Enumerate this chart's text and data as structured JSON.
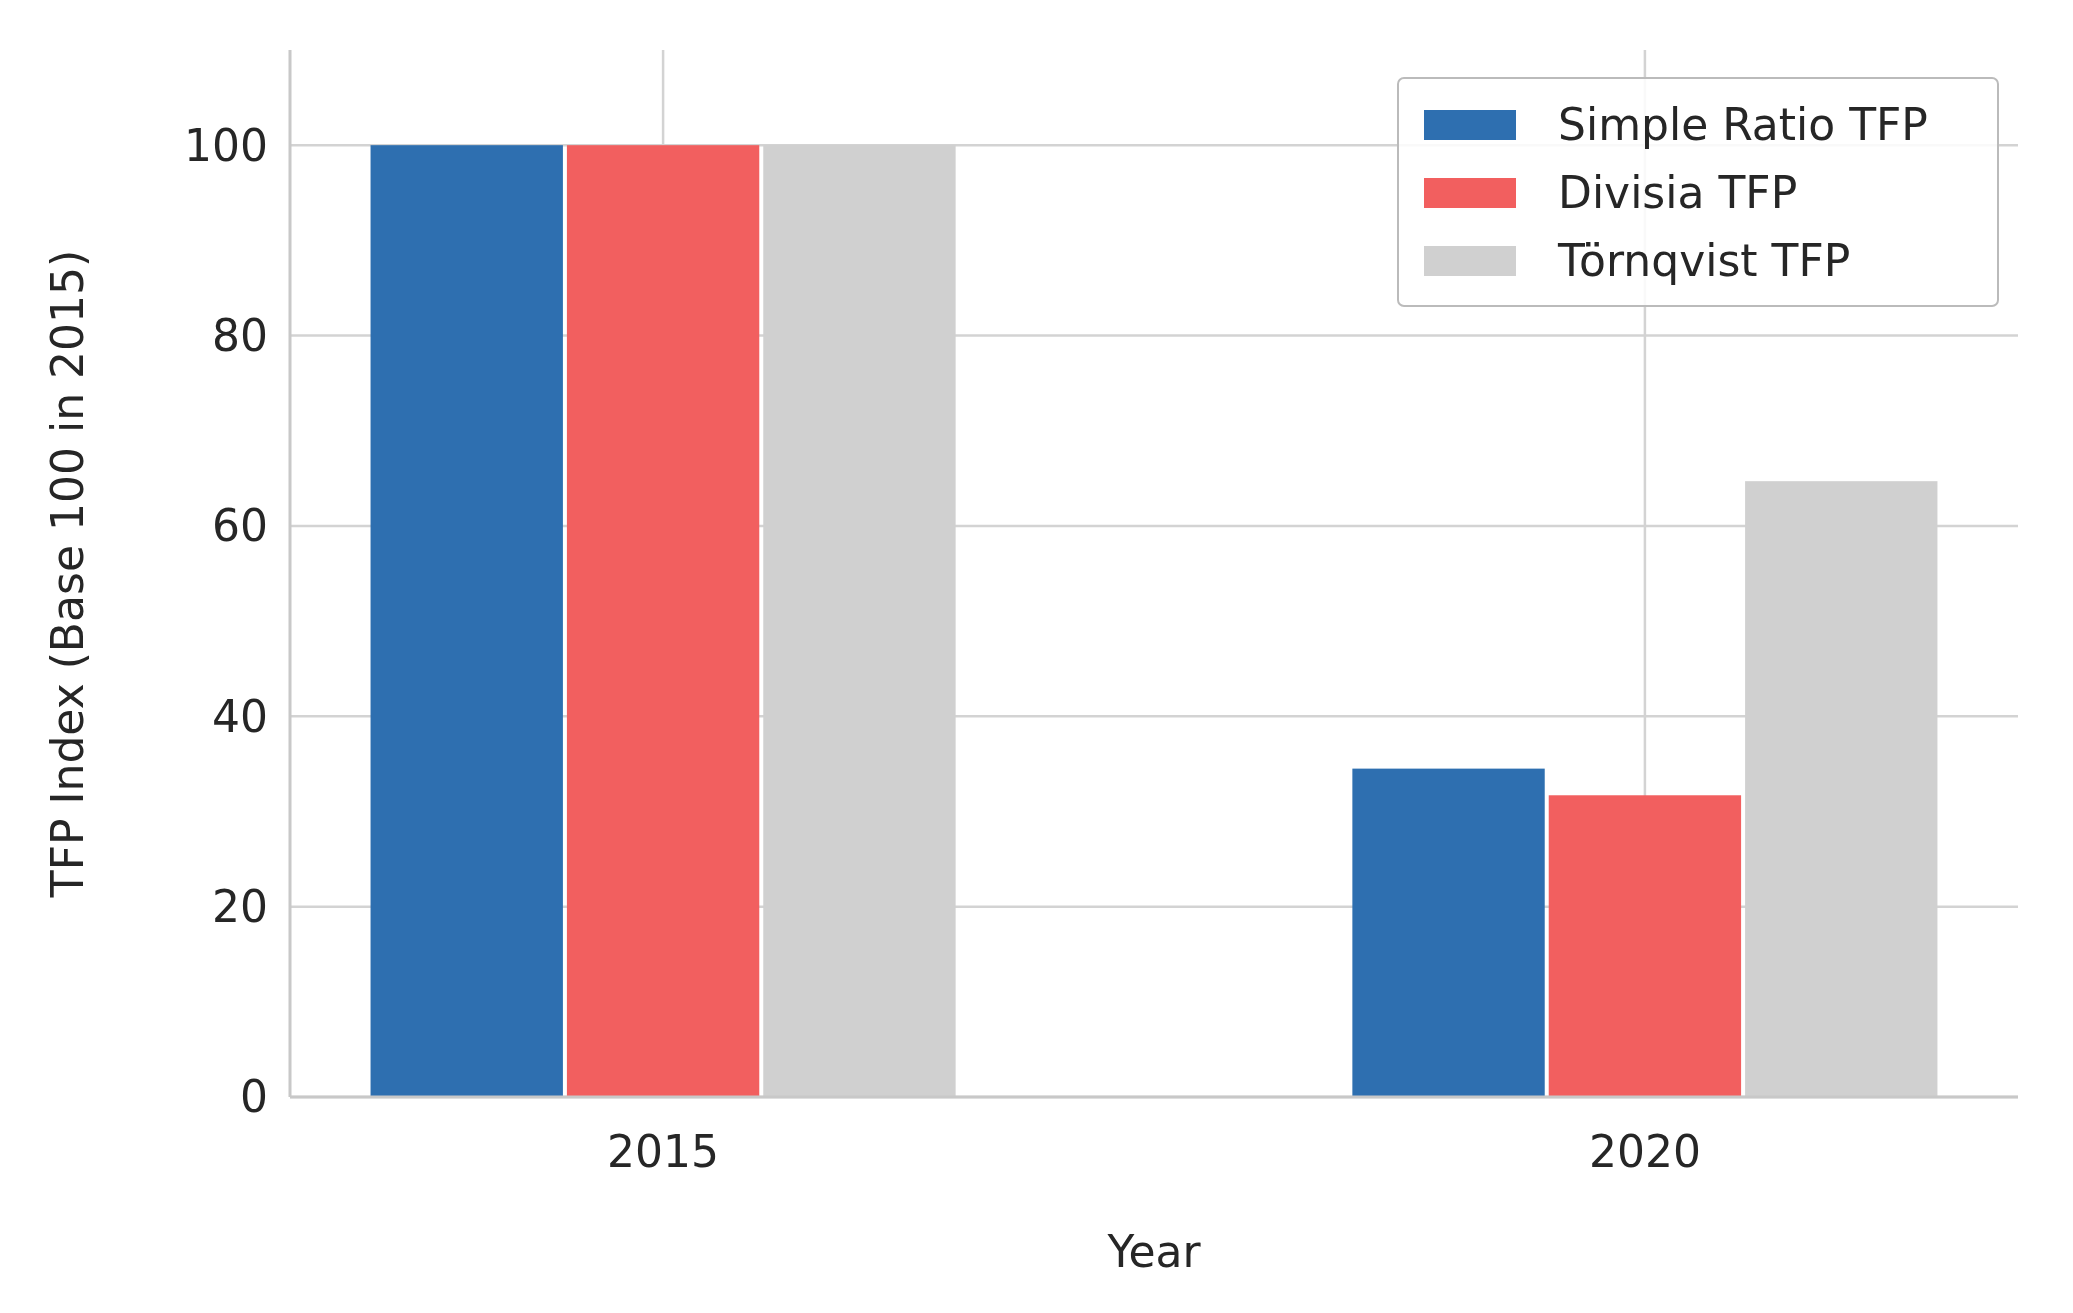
{
  "chart_data": {
    "type": "bar",
    "xlabel": "Year",
    "ylabel": "TFP Index (Base 100 in 2015)",
    "categories": [
      "2015",
      "2020"
    ],
    "series": [
      {
        "name": "Simple Ratio TFP",
        "color": "#2e6fb0",
        "values": [
          100,
          34.5
        ]
      },
      {
        "name": "Divisia TFP",
        "color": "#f25f5f",
        "values": [
          100,
          31.7
        ]
      },
      {
        "name": "Törnqvist TFP",
        "color": "#d0d0d0",
        "values": [
          100,
          64.7
        ]
      }
    ],
    "ylim": [
      0,
      110
    ],
    "yticks": [
      0,
      20,
      40,
      60,
      80,
      100
    ],
    "grid": true,
    "legend": "top right"
  }
}
